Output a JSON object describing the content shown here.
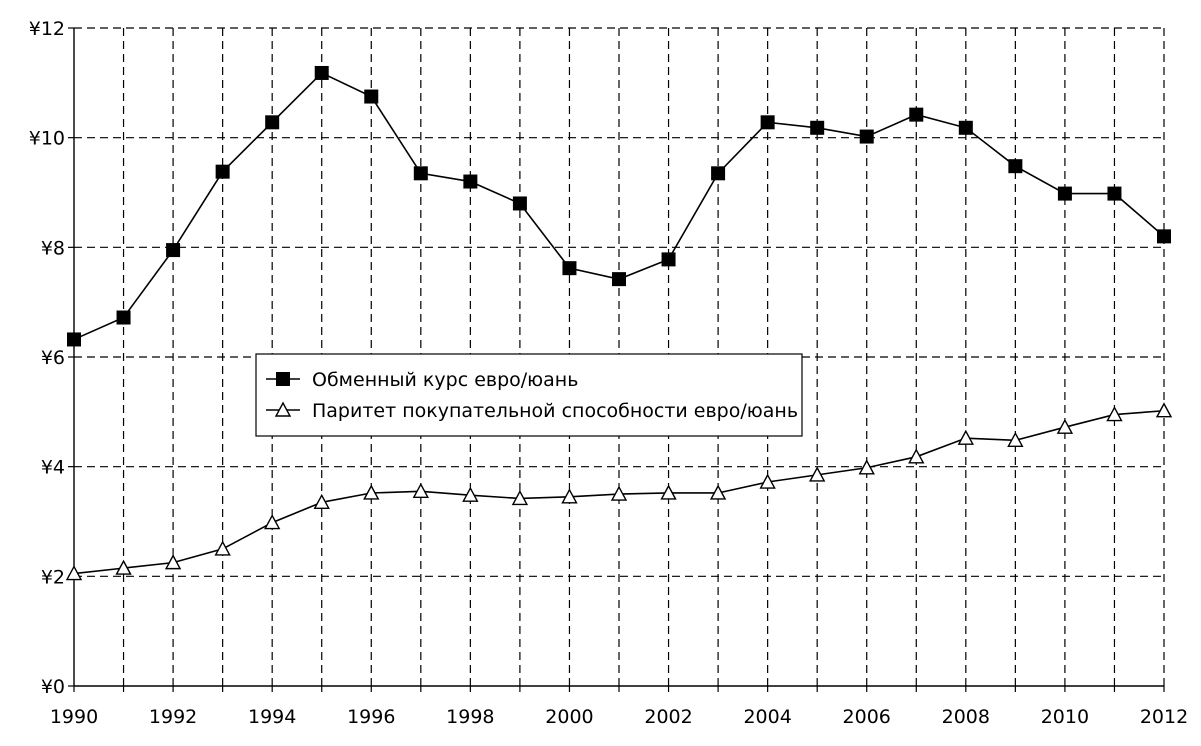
{
  "chart_data": {
    "type": "line",
    "title": "",
    "xlabel": "",
    "ylabel": "",
    "x": [
      1990,
      1991,
      1992,
      1993,
      1994,
      1995,
      1996,
      1997,
      1998,
      1999,
      2000,
      2001,
      2002,
      2003,
      2004,
      2005,
      2006,
      2007,
      2008,
      2009,
      2010,
      2011,
      2012
    ],
    "xlim": [
      1990,
      2012
    ],
    "ylim": [
      0,
      12
    ],
    "x_tick_labels": [
      "1990",
      "1992",
      "1994",
      "1996",
      "1998",
      "2000",
      "2002",
      "2004",
      "2006",
      "2008",
      "2010",
      "2012"
    ],
    "y_tick_labels": [
      "¥0",
      "¥2",
      "¥4",
      "¥6",
      "¥8",
      "¥10",
      "¥12"
    ],
    "y_tick_values": [
      0,
      2,
      4,
      6,
      8,
      10,
      12
    ],
    "grid": true,
    "grid_style": "dashed",
    "legend_position": "center-left",
    "series": [
      {
        "name": "Обменный курс евро/юань",
        "marker": "square-filled",
        "color": "#000000",
        "values": [
          6.32,
          6.72,
          7.95,
          9.38,
          10.28,
          11.18,
          10.75,
          9.35,
          9.2,
          8.8,
          7.62,
          7.42,
          7.78,
          9.35,
          10.28,
          10.18,
          10.02,
          10.42,
          10.18,
          9.48,
          8.98,
          8.98,
          8.2
        ]
      },
      {
        "name": "Паритет покупательной способности евро/юань",
        "marker": "triangle-open",
        "color": "#000000",
        "values": [
          2.05,
          2.15,
          2.25,
          2.5,
          2.98,
          3.35,
          3.52,
          3.55,
          3.48,
          3.42,
          3.45,
          3.5,
          3.52,
          3.52,
          3.72,
          3.85,
          3.98,
          4.18,
          4.52,
          4.48,
          4.72,
          4.95,
          5.02
        ]
      }
    ]
  }
}
